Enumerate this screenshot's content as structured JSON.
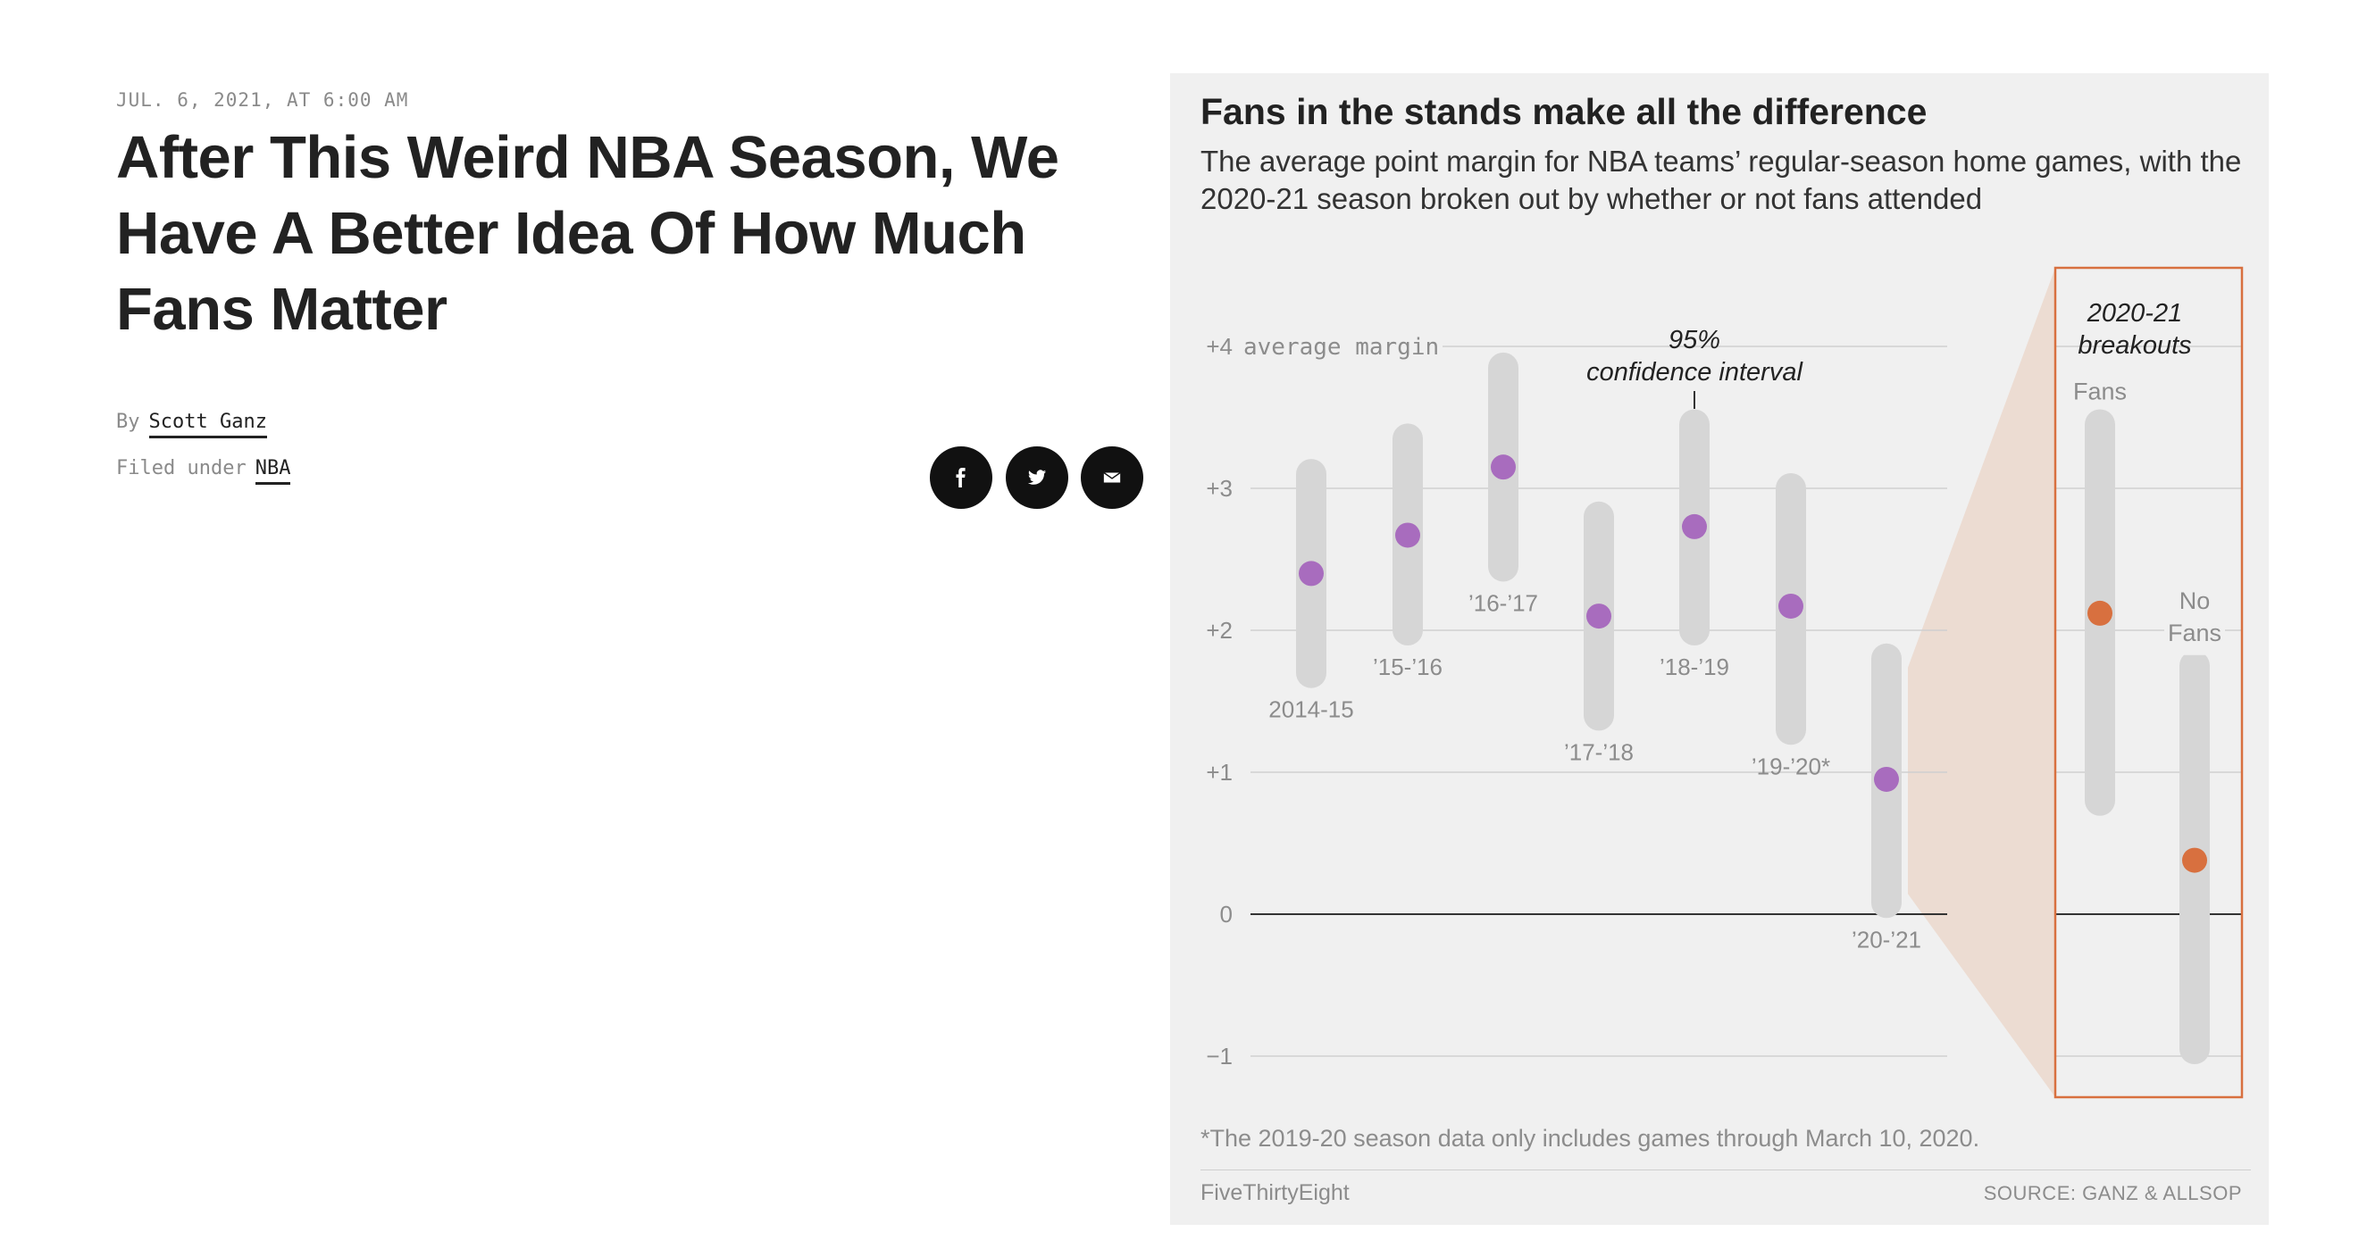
{
  "article": {
    "dateline": "JUL. 6, 2021, AT 6:00 AM",
    "headline": "After This Weird NBA Season, We Have A Better Idea Of How Much Fans Matter",
    "by_label": "By",
    "author": "Scott Ganz",
    "filed_label": "Filed under",
    "category": "NBA"
  },
  "share": [
    {
      "name": "facebook-icon",
      "glyph": "f"
    },
    {
      "name": "twitter-icon",
      "glyph": "twitter"
    },
    {
      "name": "email-icon",
      "glyph": "mail"
    }
  ],
  "chart": {
    "title": "Fans in the stands make all the difference",
    "subtitle": "The average point margin for NBA teams’ regular-season home games, with the 2020-21 season broken out by whether or not fans attended",
    "y_axis_caption": "average margin",
    "annotation": "95% confidence interval",
    "breakout_title": "2020-21 breakouts",
    "footnote": "*The 2019-20 season data only includes games through March 10, 2020.",
    "brand": "FiveThirtyEight",
    "source": "SOURCE: GANZ & ALLSOP"
  },
  "chart_data": {
    "type": "scatter",
    "ylim": [
      -1.3,
      4.4
    ],
    "y_ticks": [
      {
        "value": 4,
        "label": "+4"
      },
      {
        "value": 3,
        "label": "+3"
      },
      {
        "value": 2,
        "label": "+2"
      },
      {
        "value": 1,
        "label": "+1"
      },
      {
        "value": 0,
        "label": "0"
      },
      {
        "value": -1,
        "label": "−1"
      }
    ],
    "series": [
      {
        "points": [
          {
            "label": "2014-15",
            "value": 2.4,
            "low": 1.7,
            "high": 3.1
          },
          {
            "label": "’15-’16",
            "value": 2.67,
            "low": 2.0,
            "high": 3.35
          },
          {
            "label": "’16-’17",
            "value": 3.15,
            "low": 2.45,
            "high": 3.85
          },
          {
            "label": "’17-’18",
            "value": 2.1,
            "low": 1.4,
            "high": 2.8
          },
          {
            "label": "’18-’19",
            "value": 2.73,
            "low": 2.0,
            "high": 3.45
          },
          {
            "label": "’19-’20*",
            "value": 2.17,
            "low": 1.3,
            "high": 3.0
          },
          {
            "label": "’20-’21",
            "value": 0.95,
            "low": 0.08,
            "high": 1.8
          }
        ]
      },
      {
        "points": [
          {
            "label": "Fans",
            "value": 2.12,
            "low": 0.8,
            "high": 3.45
          },
          {
            "label": "No Fans",
            "value": 0.38,
            "low": -0.95,
            "high": 1.75
          }
        ]
      }
    ],
    "colors": {
      "season": "#a86cbe",
      "breakout": "#d8703f",
      "range": "#d6d6d6",
      "highlight": "#d8703f"
    }
  }
}
